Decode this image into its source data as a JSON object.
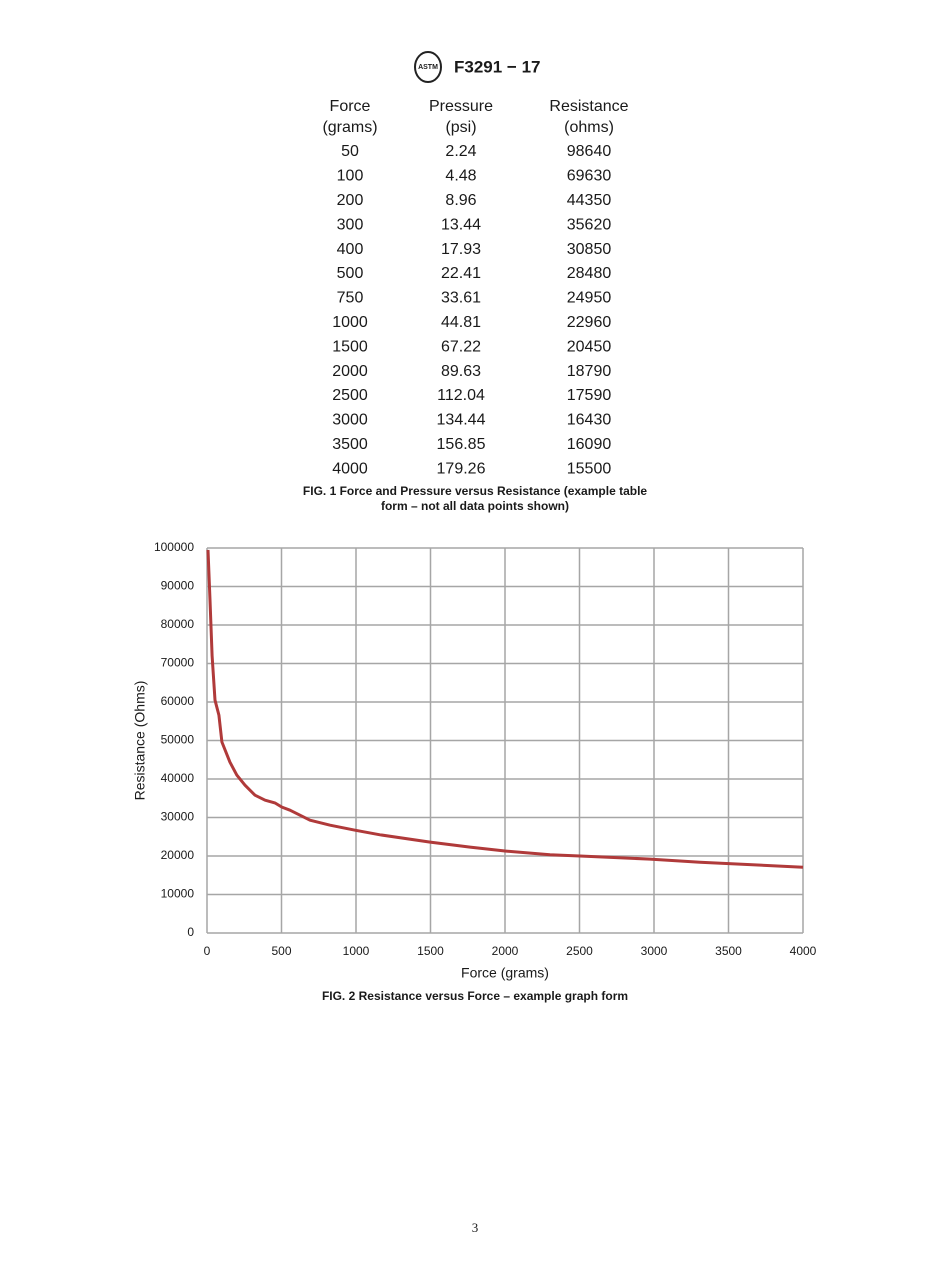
{
  "header": {
    "logo": "ASTM",
    "code": "F3291 − 17"
  },
  "table": {
    "columns": [
      [
        "Force",
        "(grams)"
      ],
      [
        "Pressure",
        "(psi)"
      ],
      [
        "Resistance",
        "(ohms)"
      ]
    ],
    "rows": [
      [
        50,
        2.24,
        98640
      ],
      [
        100,
        4.48,
        69630
      ],
      [
        200,
        8.96,
        44350
      ],
      [
        300,
        13.44,
        35620
      ],
      [
        400,
        17.93,
        30850
      ],
      [
        500,
        22.41,
        28480
      ],
      [
        750,
        33.61,
        24950
      ],
      [
        1000,
        44.81,
        22960
      ],
      [
        1500,
        67.22,
        20450
      ],
      [
        2000,
        89.63,
        18790
      ],
      [
        2500,
        112.04,
        17590
      ],
      [
        3000,
        134.44,
        16430
      ],
      [
        3500,
        156.85,
        16090
      ],
      [
        4000,
        179.26,
        15500
      ]
    ],
    "caption": [
      "FIG. 1 Force and Pressure versus Resistance (example table",
      "form – not all data points shown)"
    ]
  },
  "chart_data": {
    "type": "line",
    "x_label": "Force (grams)",
    "y_label": "Resistance (Ohms)",
    "x": [
      7,
      20,
      34,
      54,
      80,
      100,
      154,
      200,
      255,
      322,
      390,
      456,
      503,
      557,
      624,
      691,
      826,
      993,
      1161,
      1497,
      1765,
      2000,
      2302,
      2503,
      2973,
      3309,
      4000
    ],
    "values": [
      99500,
      86500,
      72000,
      60500,
      56600,
      49600,
      44400,
      41000,
      38400,
      35800,
      34500,
      33800,
      32700,
      31900,
      30600,
      29300,
      28000,
      26700,
      25500,
      23600,
      22300,
      21300,
      20300,
      20000,
      19200,
      18400,
      17100
    ],
    "color": "#b03a3a",
    "xlim": [
      0,
      4000
    ],
    "xticks": [
      0,
      500,
      1000,
      1500,
      2000,
      2500,
      3000,
      3500,
      4000
    ],
    "ylim": [
      0,
      100000
    ],
    "yticks": [
      0,
      10000,
      20000,
      30000,
      40000,
      50000,
      60000,
      70000,
      80000,
      90000,
      100000
    ],
    "grid": true
  },
  "figure_caption": "FIG. 2 Resistance versus Force – example graph form",
  "page_number": "3"
}
